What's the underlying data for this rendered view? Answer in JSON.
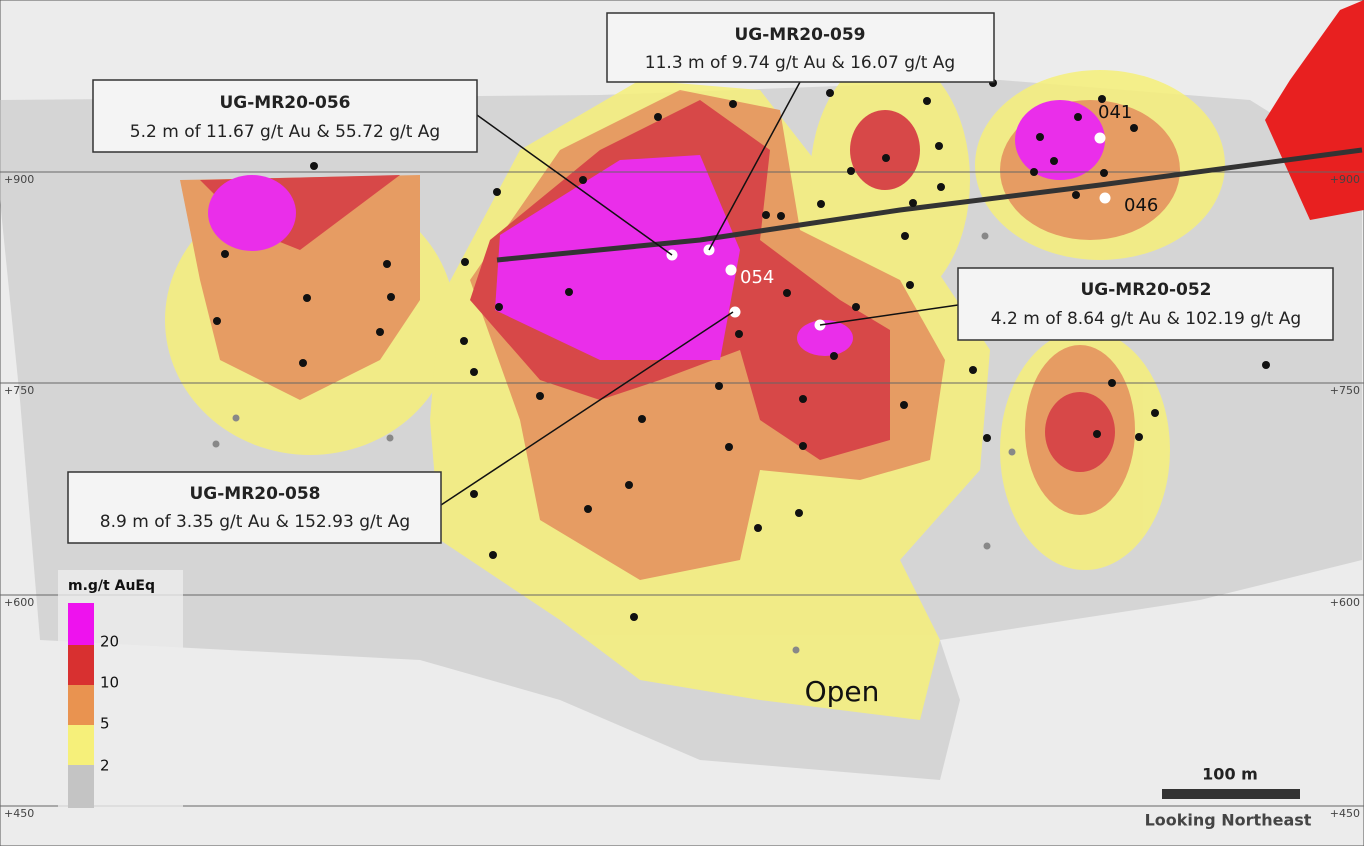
{
  "callouts": [
    {
      "hole": "UG-MR20-059",
      "intercept": "11.3 m of 9.74 g/t Au & 16.07 g/t Ag"
    },
    {
      "hole": "UG-MR20-056",
      "intercept": "5.2 m of 11.67 g/t Au & 55.72 g/t Ag"
    },
    {
      "hole": "UG-MR20-052",
      "intercept": "4.2 m of 8.64 g/t Au & 102.19 g/t Ag"
    },
    {
      "hole": "UG-MR20-058",
      "intercept": "8.9 m of 3.35 g/t Au & 152.93 g/t Ag"
    }
  ],
  "elevations": {
    "left": [
      "+900",
      "+750",
      "+600",
      "+450"
    ],
    "right": [
      "+900",
      "+750",
      "+600",
      "+450"
    ]
  },
  "legend": {
    "title": "m.g/t AuEq",
    "levels": [
      "20",
      "10",
      "5",
      "2"
    ]
  },
  "hole_labels": [
    "041",
    "046",
    "054"
  ],
  "annotation": "Open",
  "scale_bar": "100 m",
  "view": "Looking Northeast"
}
